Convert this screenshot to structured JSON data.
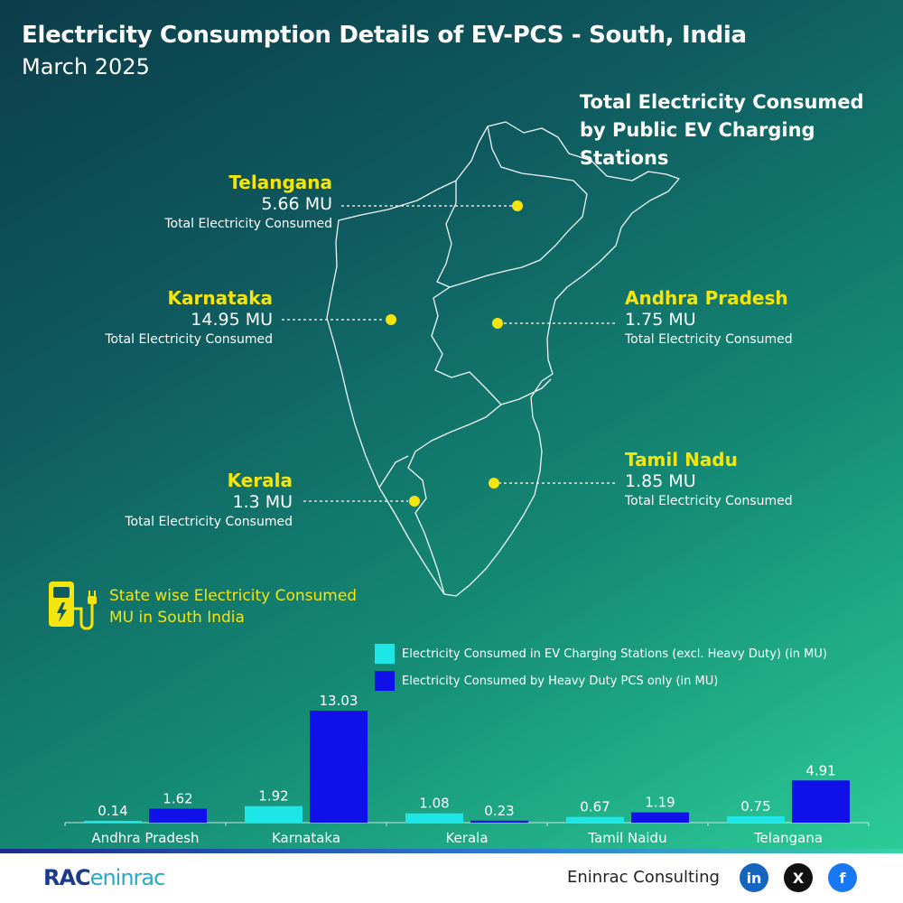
{
  "header": {
    "title": "Electricity Consumption Details of EV-PCS - South, India",
    "subtitle": "March 2025"
  },
  "map": {
    "heading": "Total Electricity Consumed by Public EV Charging Stations",
    "callouts": [
      {
        "state": "Telangana",
        "value": "5.66 MU",
        "label": "Total Electricity Consumed"
      },
      {
        "state": "Karnataka",
        "value": "14.95 MU",
        "label": "Total Electricity Consumed"
      },
      {
        "state": "Andhra Pradesh",
        "value": "1.75 MU",
        "label": "Total Electricity Consumed"
      },
      {
        "state": "Tamil Nadu",
        "value": "1.85 MU",
        "label": "Total Electricity Consumed"
      },
      {
        "state": "Kerala",
        "value": "1.3 MU",
        "label": "Total Electricity Consumed"
      }
    ],
    "marker_color": "#f5e50f"
  },
  "section_label": "State wise Electricity Consumed MU in South India",
  "chart_data": {
    "type": "bar",
    "categories": [
      "Andhra Pradesh",
      "Karnataka",
      "Kerala",
      "Tamil Naidu",
      "Telangana"
    ],
    "series": [
      {
        "name": "Electricity Consumed in EV Charging Stations (excl. Heavy Duty) (in MU)",
        "color": "#1ee6e6",
        "values": [
          0.14,
          1.92,
          1.08,
          0.67,
          0.75
        ]
      },
      {
        "name": "Electricity Consumed by Heavy Duty PCS only (in MU)",
        "color": "#1010e8",
        "values": [
          1.62,
          13.03,
          0.23,
          1.19,
          4.91
        ]
      }
    ],
    "ylim": [
      0,
      13.03
    ],
    "legend": "top-right",
    "grid": false
  },
  "footer": {
    "logo_bold": "RAC",
    "logo_light": "eninrac",
    "company": "Eninrac Consulting",
    "social": [
      "linkedin-icon",
      "x-icon",
      "facebook-icon"
    ],
    "social_glyphs": [
      "in",
      "X",
      "f"
    ]
  }
}
